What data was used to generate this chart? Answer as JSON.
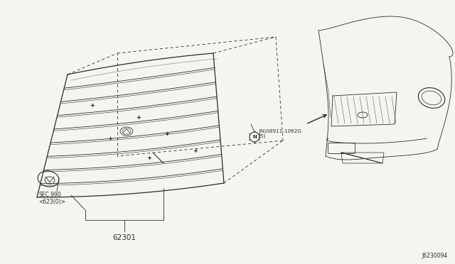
{
  "bg_color": "#f5f5f0",
  "line_color": "#2a2a2a",
  "part_number_grille": "62301",
  "part_number_fastener": "(N)08911-1062G\n(5)",
  "part_ref_sec": "SEC.990\n<623(0)>",
  "diagram_ref": "J6230094",
  "figsize": [
    6.4,
    3.72
  ],
  "dpi": 100
}
